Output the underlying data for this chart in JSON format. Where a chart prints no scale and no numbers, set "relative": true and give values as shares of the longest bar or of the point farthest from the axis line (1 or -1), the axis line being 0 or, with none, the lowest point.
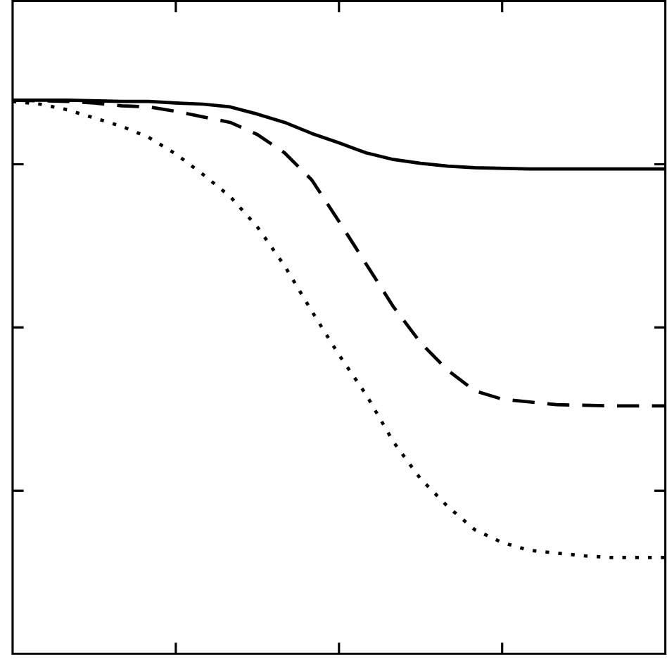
{
  "chart_data": {
    "type": "line",
    "relative": true,
    "categories": [
      null,
      null,
      null,
      null,
      null,
      null,
      null,
      null,
      null,
      null,
      null,
      null,
      null,
      null,
      null,
      null,
      null,
      null,
      null,
      null,
      null,
      null,
      null,
      null,
      null
    ],
    "series": [
      {
        "color": "#000000",
        "line_style": "solid",
        "values": [
          1,
          1,
          1,
          0.999,
          0.998,
          0.998,
          0.995,
          0.993,
          0.988,
          0.975,
          0.96,
          0.94,
          0.923,
          0.905,
          0.893,
          0.886,
          0.881,
          0.878,
          0.877,
          0.876,
          0.876,
          0.876,
          0.876,
          0.876,
          0.876
        ]
      },
      {
        "color": "#000000",
        "line_style": "dashed",
        "values": [
          1,
          0.999,
          0.998,
          0.995,
          0.99,
          0.988,
          0.98,
          0.97,
          0.96,
          0.938,
          0.905,
          0.856,
          0.781,
          0.704,
          0.627,
          0.562,
          0.512,
          0.475,
          0.46,
          0.455,
          0.45,
          0.449,
          0.448,
          0.448,
          0.448
        ]
      },
      {
        "color": "#000000",
        "line_style": "dotted",
        "values": [
          0.998,
          0.993,
          0.983,
          0.968,
          0.953,
          0.933,
          0.903,
          0.866,
          0.826,
          0.771,
          0.701,
          0.619,
          0.54,
          0.468,
          0.383,
          0.316,
          0.266,
          0.224,
          0.201,
          0.187,
          0.182,
          0.177,
          0.174,
          0.174,
          0.174
        ]
      }
    ]
  }
}
